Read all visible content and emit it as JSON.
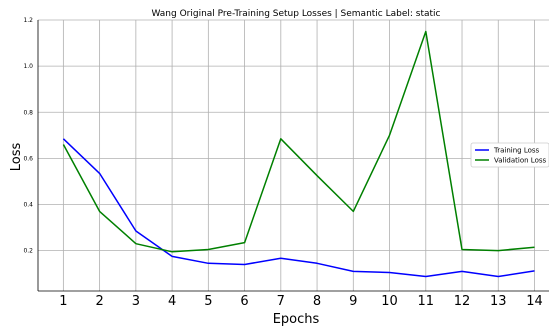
{
  "chart_data": {
    "type": "line",
    "title": "Wang Original Pre-Training Setup Losses | Semantic Label: static",
    "xlabel": "Epochs",
    "ylabel": "Loss",
    "x": [
      1,
      2,
      3,
      4,
      5,
      6,
      7,
      8,
      9,
      10,
      11,
      12,
      13,
      14
    ],
    "xlim": [
      0.3,
      14.4
    ],
    "ylim": [
      0.025,
      1.2
    ],
    "yticks": [
      "0.2",
      "0.4",
      "0.6",
      "0.8",
      "1.0",
      "1.2"
    ],
    "yticks_values": [
      0.2,
      0.4,
      0.6,
      0.8,
      1.0,
      1.2
    ],
    "grid": true,
    "legend_position": "right",
    "series": [
      {
        "name": "Training Loss",
        "color": "#0000ff",
        "values": [
          0.685,
          0.535,
          0.285,
          0.175,
          0.145,
          0.14,
          0.167,
          0.145,
          0.11,
          0.105,
          0.088,
          0.11,
          0.088,
          0.112
        ]
      },
      {
        "name": "Validation Loss",
        "color": "#008000",
        "values": [
          0.66,
          0.37,
          0.23,
          0.195,
          0.205,
          0.235,
          0.685,
          0.525,
          0.37,
          0.7,
          1.15,
          0.205,
          0.2,
          0.215
        ]
      }
    ]
  }
}
